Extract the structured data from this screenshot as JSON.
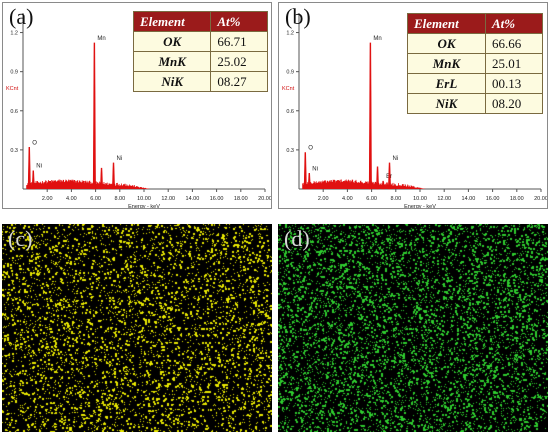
{
  "panels": {
    "a": {
      "label": "(a)",
      "table": {
        "headers": [
          "Element",
          "At%"
        ],
        "rows": [
          {
            "element": "OK",
            "value": "66.71"
          },
          {
            "element": "MnK",
            "value": "25.02"
          },
          {
            "element": "NiK",
            "value": "08.27"
          }
        ]
      }
    },
    "b": {
      "label": "(b)",
      "table": {
        "headers": [
          "Element",
          "At%"
        ],
        "rows": [
          {
            "element": "OK",
            "value": "66.66"
          },
          {
            "element": "MnK",
            "value": "25.01"
          },
          {
            "element": "ErL",
            "value": "00.13"
          },
          {
            "element": "NiK",
            "value": "08.20"
          }
        ]
      }
    },
    "c": {
      "label": "(c)",
      "dot_color": "#e8e800"
    },
    "d": {
      "label": "(d)",
      "dot_color": "#2ecc2e"
    }
  },
  "chart_data": [
    {
      "type": "line",
      "panel": "(a)",
      "xlabel": "Energy - keV",
      "ylabel": "KCnt",
      "xlim": [
        0,
        20
      ],
      "ylim": [
        0,
        1.35
      ],
      "x_ticks": [
        "2.00",
        "4.00",
        "6.00",
        "8.00",
        "10.00",
        "12.00",
        "14.00",
        "16.00",
        "18.00",
        "20.00"
      ],
      "y_ticks": [
        "0.3",
        "0.6",
        "0.9",
        "1.2"
      ],
      "line_color": "#e01010",
      "peaks": [
        {
          "label": "O",
          "energy": 0.52,
          "height": 0.32,
          "labeled": true
        },
        {
          "label": "Ni",
          "energy": 0.85,
          "height": 0.14,
          "labeled": true
        },
        {
          "label": "Mn",
          "energy": 5.9,
          "height": 1.12,
          "labeled": true
        },
        {
          "label": "",
          "energy": 6.49,
          "height": 0.16,
          "labeled": false
        },
        {
          "label": "Ni",
          "energy": 7.48,
          "height": 0.2,
          "labeled": true
        }
      ]
    },
    {
      "type": "line",
      "panel": "(b)",
      "xlabel": "Energy - keV",
      "ylabel": "KCnt",
      "xlim": [
        0,
        20
      ],
      "ylim": [
        0,
        1.35
      ],
      "x_ticks": [
        "2.00",
        "4.00",
        "6.00",
        "8.00",
        "10.00",
        "12.00",
        "14.00",
        "16.00",
        "18.00",
        "20.00"
      ],
      "y_ticks": [
        "0.3",
        "0.6",
        "0.9",
        "1.2"
      ],
      "line_color": "#e01010",
      "peaks": [
        {
          "label": "O",
          "energy": 0.52,
          "height": 0.28,
          "labeled": true
        },
        {
          "label": "Ni",
          "energy": 0.85,
          "height": 0.12,
          "labeled": true
        },
        {
          "label": "Mn",
          "energy": 5.9,
          "height": 1.12,
          "labeled": true
        },
        {
          "label": "",
          "energy": 6.49,
          "height": 0.17,
          "labeled": false
        },
        {
          "label": "Er",
          "energy": 6.95,
          "height": 0.06,
          "labeled": true
        },
        {
          "label": "Ni",
          "energy": 7.48,
          "height": 0.2,
          "labeled": true
        }
      ]
    }
  ]
}
